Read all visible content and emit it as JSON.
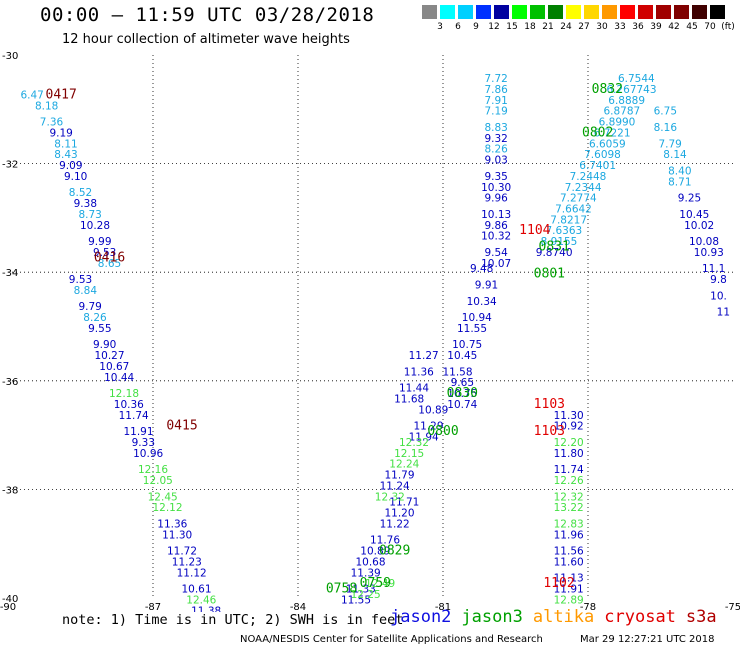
{
  "header": {
    "title": "00:00 – 11:59 UTC 03/28/2018",
    "subtitle": "12 hour collection of altimeter wave heights"
  },
  "scale": {
    "unit": "(ft)",
    "colors": [
      "#888888",
      "#00ffff",
      "#00d0ff",
      "#0030ff",
      "#0000a0",
      "#00ff00",
      "#00c000",
      "#008000",
      "#ffff00",
      "#ffd700",
      "#ff9900",
      "#ff0000",
      "#d00000",
      "#a00000",
      "#800000",
      "#400000",
      "#000000"
    ],
    "labels": [
      "3",
      "6",
      "9",
      "12",
      "15",
      "18",
      "21",
      "24",
      "27",
      "30",
      "33",
      "36",
      "39",
      "42",
      "45",
      "70"
    ]
  },
  "note": "note:  1) Time is in UTC;  2) SWH is in feet",
  "legend": [
    {
      "name": "jason2",
      "color": "#1010e0"
    },
    {
      "name": "jason3",
      "color": "#00a000"
    },
    {
      "name": "altika",
      "color": "#ff9900"
    },
    {
      "name": "cryosat",
      "color": "#e00000"
    },
    {
      "name": "s3a",
      "color": "#b00000"
    }
  ],
  "footer": {
    "credit": "NOAA/NESDIS Center for Satellite Applications and Research",
    "timestamp": "Mar 29 12:27:21 UTC 2018"
  },
  "chart_data": {
    "type": "scatter",
    "xlim": [
      -90,
      -75
    ],
    "ylim": [
      -40,
      -30
    ],
    "xticks": [
      "-90",
      "-87",
      "-84",
      "-81",
      "-78",
      "-75"
    ],
    "yticks": [
      "-30",
      "-32",
      "-34",
      "-36",
      "-38",
      "-40"
    ],
    "grid": "dotted",
    "time_labels": [
      {
        "text": "0417",
        "lon": -88.9,
        "lat": -30.8,
        "color": "#800000"
      },
      {
        "text": "0416",
        "lon": -87.9,
        "lat": -33.8,
        "color": "#800000"
      },
      {
        "text": "0415",
        "lon": -86.4,
        "lat": -36.9,
        "color": "#800000"
      },
      {
        "text": "0832",
        "lon": -77.6,
        "lat": -30.7,
        "color": "#00a000"
      },
      {
        "text": "0802",
        "lon": -77.8,
        "lat": -31.5,
        "color": "#00a000"
      },
      {
        "text": "1104",
        "lon": -79.1,
        "lat": -33.3,
        "color": "#e00000"
      },
      {
        "text": "0831",
        "lon": -78.7,
        "lat": -33.6,
        "color": "#00a000"
      },
      {
        "text": "0801",
        "lon": -78.8,
        "lat": -34.1,
        "color": "#00a000"
      },
      {
        "text": "1103",
        "lon": -78.8,
        "lat": -36.5,
        "color": "#e00000"
      },
      {
        "text": "0830",
        "lon": -80.6,
        "lat": -36.3,
        "color": "#00a000"
      },
      {
        "text": "1103",
        "lon": -78.8,
        "lat": -37.0,
        "color": "#e00000"
      },
      {
        "text": "0800",
        "lon": -81.0,
        "lat": -37.0,
        "color": "#00a000"
      },
      {
        "text": "0829",
        "lon": -82.0,
        "lat": -39.2,
        "color": "#00a000"
      },
      {
        "text": "0759",
        "lon": -82.4,
        "lat": -39.8,
        "color": "#00a000"
      },
      {
        "text": "0758",
        "lon": -83.1,
        "lat": -39.9,
        "color": "#00a000"
      },
      {
        "text": "1102",
        "lon": -78.6,
        "lat": -39.8,
        "color": "#e00000"
      }
    ],
    "series": [
      {
        "name": "s3a",
        "points": [
          {
            "lon": -89.5,
            "lat": -30.8,
            "v": "6.47"
          },
          {
            "lon": -89.2,
            "lat": -31.0,
            "v": "8.18"
          },
          {
            "lon": -89.1,
            "lat": -31.3,
            "v": "7.36"
          },
          {
            "lon": -88.9,
            "lat": -31.5,
            "v": "9.19"
          },
          {
            "lon": -88.8,
            "lat": -31.7,
            "v": "8.11"
          },
          {
            "lon": -88.8,
            "lat": -31.9,
            "v": "8.43"
          },
          {
            "lon": -88.7,
            "lat": -32.1,
            "v": "9.09"
          },
          {
            "lon": -88.6,
            "lat": -32.3,
            "v": "9.10"
          },
          {
            "lon": -88.5,
            "lat": -32.6,
            "v": "8.52"
          },
          {
            "lon": -88.4,
            "lat": -32.8,
            "v": "9.38"
          },
          {
            "lon": -88.3,
            "lat": -33.0,
            "v": "8.73"
          },
          {
            "lon": -88.2,
            "lat": -33.2,
            "v": "10.28"
          },
          {
            "lon": -88.1,
            "lat": -33.5,
            "v": "9.99"
          },
          {
            "lon": -88.0,
            "lat": -33.7,
            "v": "9.53"
          },
          {
            "lon": -87.9,
            "lat": -33.9,
            "v": "8.65"
          },
          {
            "lon": -88.5,
            "lat": -34.2,
            "v": "9.53"
          },
          {
            "lon": -88.4,
            "lat": -34.4,
            "v": "8.84"
          },
          {
            "lon": -88.3,
            "lat": -34.7,
            "v": "9.79"
          },
          {
            "lon": -88.2,
            "lat": -34.9,
            "v": "8.26"
          },
          {
            "lon": -88.1,
            "lat": -35.1,
            "v": "9.55"
          },
          {
            "lon": -88.0,
            "lat": -35.4,
            "v": "9.90"
          },
          {
            "lon": -87.9,
            "lat": -35.6,
            "v": "10.27"
          },
          {
            "lon": -87.8,
            "lat": -35.8,
            "v": "10.67"
          },
          {
            "lon": -87.7,
            "lat": -36.0,
            "v": "10.44"
          },
          {
            "lon": -87.6,
            "lat": -36.3,
            "v": "12.18"
          },
          {
            "lon": -87.5,
            "lat": -36.5,
            "v": "10.36"
          },
          {
            "lon": -87.4,
            "lat": -36.7,
            "v": "11.74"
          },
          {
            "lon": -87.3,
            "lat": -37.0,
            "v": "11.91"
          },
          {
            "lon": -87.2,
            "lat": -37.2,
            "v": "9.33"
          },
          {
            "lon": -87.1,
            "lat": -37.4,
            "v": "10.96"
          },
          {
            "lon": -87.0,
            "lat": -37.7,
            "v": "12.16"
          },
          {
            "lon": -86.9,
            "lat": -37.9,
            "v": "12.05"
          },
          {
            "lon": -86.8,
            "lat": -38.2,
            "v": "12.45"
          },
          {
            "lon": -86.7,
            "lat": -38.4,
            "v": "12.12"
          },
          {
            "lon": -86.6,
            "lat": -38.7,
            "v": "11.36"
          },
          {
            "lon": -86.5,
            "lat": -38.9,
            "v": "11.30"
          },
          {
            "lon": -86.4,
            "lat": -39.2,
            "v": "11.72"
          },
          {
            "lon": -86.3,
            "lat": -39.4,
            "v": "11.23"
          },
          {
            "lon": -86.2,
            "lat": -39.6,
            "v": "11.12"
          },
          {
            "lon": -86.1,
            "lat": -39.9,
            "v": "10.61"
          },
          {
            "lon": -86.0,
            "lat": -40.1,
            "v": "12.46"
          },
          {
            "lon": -85.9,
            "lat": -40.3,
            "v": "11.38"
          }
        ]
      },
      {
        "name": "jason2",
        "points": [
          {
            "lon": -79.9,
            "lat": -30.5,
            "v": "7.72"
          },
          {
            "lon": -79.9,
            "lat": -30.7,
            "v": "7.86"
          },
          {
            "lon": -79.9,
            "lat": -30.9,
            "v": "7.91"
          },
          {
            "lon": -79.9,
            "lat": -31.1,
            "v": "7.19"
          },
          {
            "lon": -79.9,
            "lat": -31.4,
            "v": "8.83"
          },
          {
            "lon": -79.9,
            "lat": -31.6,
            "v": "9.32"
          },
          {
            "lon": -79.9,
            "lat": -31.8,
            "v": "8.26"
          },
          {
            "lon": -79.9,
            "lat": -32.0,
            "v": "9.03"
          },
          {
            "lon": -79.9,
            "lat": -32.3,
            "v": "9.35"
          },
          {
            "lon": -79.9,
            "lat": -32.5,
            "v": "10.30"
          },
          {
            "lon": -79.9,
            "lat": -32.7,
            "v": "9.96"
          },
          {
            "lon": -79.9,
            "lat": -33.0,
            "v": "10.13"
          },
          {
            "lon": -79.9,
            "lat": -33.2,
            "v": "9.86"
          },
          {
            "lon": -79.9,
            "lat": -33.4,
            "v": "10.32"
          },
          {
            "lon": -79.9,
            "lat": -33.7,
            "v": "9.54"
          },
          {
            "lon": -79.9,
            "lat": -33.9,
            "v": "10.07"
          }
        ]
      },
      {
        "name": "cryosat",
        "points": [
          {
            "lon": -78.4,
            "lat": -36.7,
            "v": "11.30"
          },
          {
            "lon": -78.4,
            "lat": -36.9,
            "v": "10.92"
          },
          {
            "lon": -78.4,
            "lat": -37.2,
            "v": "12.20"
          },
          {
            "lon": -78.4,
            "lat": -37.4,
            "v": "11.80"
          },
          {
            "lon": -78.4,
            "lat": -37.7,
            "v": "11.74"
          },
          {
            "lon": -78.4,
            "lat": -37.9,
            "v": "12.26"
          },
          {
            "lon": -78.4,
            "lat": -38.2,
            "v": "12.32"
          },
          {
            "lon": -78.4,
            "lat": -38.4,
            "v": "13.22"
          },
          {
            "lon": -78.4,
            "lat": -38.7,
            "v": "12.83"
          },
          {
            "lon": -78.4,
            "lat": -38.9,
            "v": "11.96"
          },
          {
            "lon": -78.4,
            "lat": -39.2,
            "v": "11.56"
          },
          {
            "lon": -78.4,
            "lat": -39.4,
            "v": "11.60"
          },
          {
            "lon": -78.4,
            "lat": -39.7,
            "v": "11.13"
          },
          {
            "lon": -78.4,
            "lat": -39.9,
            "v": "11.91"
          },
          {
            "lon": -78.4,
            "lat": -40.1,
            "v": "12.89"
          }
        ]
      },
      {
        "name": "jason3-east",
        "points": [
          {
            "lon": -76.4,
            "lat": -31.1,
            "v": "6.75"
          },
          {
            "lon": -76.4,
            "lat": -31.4,
            "v": "8.16"
          },
          {
            "lon": -76.3,
            "lat": -31.7,
            "v": "7.79"
          },
          {
            "lon": -76.2,
            "lat": -31.9,
            "v": "8.14"
          },
          {
            "lon": -76.1,
            "lat": -32.2,
            "v": "8.40"
          },
          {
            "lon": -76.1,
            "lat": -32.4,
            "v": "8.71"
          },
          {
            "lon": -75.9,
            "lat": -32.7,
            "v": "9.25"
          },
          {
            "lon": -75.8,
            "lat": -33.0,
            "v": "10.45"
          },
          {
            "lon": -75.7,
            "lat": -33.2,
            "v": "10.02"
          },
          {
            "lon": -75.6,
            "lat": -33.5,
            "v": "10.08"
          },
          {
            "lon": -75.5,
            "lat": -33.7,
            "v": "10.93"
          },
          {
            "lon": -75.4,
            "lat": -34.0,
            "v": "11.1"
          },
          {
            "lon": -75.3,
            "lat": -34.2,
            "v": "9.8"
          },
          {
            "lon": -75.3,
            "lat": -34.5,
            "v": "10."
          },
          {
            "lon": -75.2,
            "lat": -34.8,
            "v": "11"
          }
        ]
      },
      {
        "name": "jason2-band-a",
        "points": [
          {
            "lon": -80.2,
            "lat": -34.0,
            "v": "9.48"
          },
          {
            "lon": -80.1,
            "lat": -34.3,
            "v": "9.91"
          },
          {
            "lon": -80.2,
            "lat": -34.6,
            "v": "10.34"
          },
          {
            "lon": -80.3,
            "lat": -34.9,
            "v": "10.94"
          },
          {
            "lon": -80.4,
            "lat": -35.1,
            "v": "11.55"
          },
          {
            "lon": -80.5,
            "lat": -35.4,
            "v": "10.75"
          },
          {
            "lon": -80.6,
            "lat": -35.6,
            "v": "10.45"
          },
          {
            "lon": -80.7,
            "lat": -35.9,
            "v": "11.58"
          },
          {
            "lon": -80.6,
            "lat": -36.1,
            "v": "9.65"
          },
          {
            "lon": -80.6,
            "lat": -36.3,
            "v": "10.75"
          },
          {
            "lon": -80.6,
            "lat": -36.5,
            "v": "10.74"
          },
          {
            "lon": -81.2,
            "lat": -36.6,
            "v": "10.89"
          },
          {
            "lon": -81.3,
            "lat": -36.9,
            "v": "11.29"
          },
          {
            "lon": -81.4,
            "lat": -37.1,
            "v": "11.94"
          },
          {
            "lon": -81.4,
            "lat": -35.6,
            "v": "11.27"
          },
          {
            "lon": -81.5,
            "lat": -35.9,
            "v": "11.36"
          },
          {
            "lon": -81.6,
            "lat": -36.2,
            "v": "11.44"
          },
          {
            "lon": -81.7,
            "lat": -36.4,
            "v": "11.68"
          },
          {
            "lon": -81.8,
            "lat": -38.3,
            "v": "11.71"
          },
          {
            "lon": -81.9,
            "lat": -38.5,
            "v": "11.20"
          },
          {
            "lon": -82.0,
            "lat": -38.7,
            "v": "11.22"
          },
          {
            "lon": -82.2,
            "lat": -39.0,
            "v": "11.76"
          },
          {
            "lon": -82.4,
            "lat": -39.2,
            "v": "10.89"
          },
          {
            "lon": -82.5,
            "lat": -39.4,
            "v": "10.68"
          },
          {
            "lon": -82.6,
            "lat": -39.6,
            "v": "11.39"
          },
          {
            "lon": -82.7,
            "lat": -39.9,
            "v": "11.33"
          },
          {
            "lon": -82.8,
            "lat": -40.1,
            "v": "11.55"
          }
        ]
      },
      {
        "name": "jason3-band-b",
        "points": [
          {
            "lon": -81.6,
            "lat": -37.2,
            "v": "12.32"
          },
          {
            "lon": -81.7,
            "lat": -37.4,
            "v": "12.15"
          },
          {
            "lon": -81.8,
            "lat": -37.6,
            "v": "12.24"
          },
          {
            "lon": -81.9,
            "lat": -37.8,
            "v": "11.79"
          },
          {
            "lon": -82.0,
            "lat": -38.0,
            "v": "11.24"
          },
          {
            "lon": -82.1,
            "lat": -38.2,
            "v": "12.32"
          },
          {
            "lon": -82.3,
            "lat": -39.8,
            "v": "12.49"
          },
          {
            "lon": -82.6,
            "lat": -40.0,
            "v": "12.25"
          }
        ]
      },
      {
        "name": "jason3-ne",
        "points": [
          {
            "lon": -77.0,
            "lat": -30.5,
            "v": "6.7544"
          },
          {
            "lon": -77.1,
            "lat": -30.7,
            "v": "6.267743"
          },
          {
            "lon": -77.2,
            "lat": -30.9,
            "v": "6.8889"
          },
          {
            "lon": -77.3,
            "lat": -31.1,
            "v": "6.8787"
          },
          {
            "lon": -77.4,
            "lat": -31.3,
            "v": "6.8990"
          },
          {
            "lon": -77.5,
            "lat": -31.5,
            "v": "6.7221"
          },
          {
            "lon": -77.6,
            "lat": -31.7,
            "v": "6.6059"
          },
          {
            "lon": -77.7,
            "lat": -31.9,
            "v": "7.6098"
          },
          {
            "lon": -77.8,
            "lat": -32.1,
            "v": "6.7401"
          },
          {
            "lon": -78.0,
            "lat": -32.3,
            "v": "7.2448"
          },
          {
            "lon": -78.1,
            "lat": -32.5,
            "v": "7.2344"
          },
          {
            "lon": -78.2,
            "lat": -32.7,
            "v": "7.2774"
          },
          {
            "lon": -78.3,
            "lat": -32.9,
            "v": "7.6642"
          },
          {
            "lon": -78.4,
            "lat": -33.1,
            "v": "7.8217"
          },
          {
            "lon": -78.5,
            "lat": -33.3,
            "v": "7.6363"
          },
          {
            "lon": -78.6,
            "lat": -33.5,
            "v": "8.9155"
          },
          {
            "lon": -78.7,
            "lat": -33.7,
            "v": "9.8740"
          }
        ]
      }
    ]
  }
}
